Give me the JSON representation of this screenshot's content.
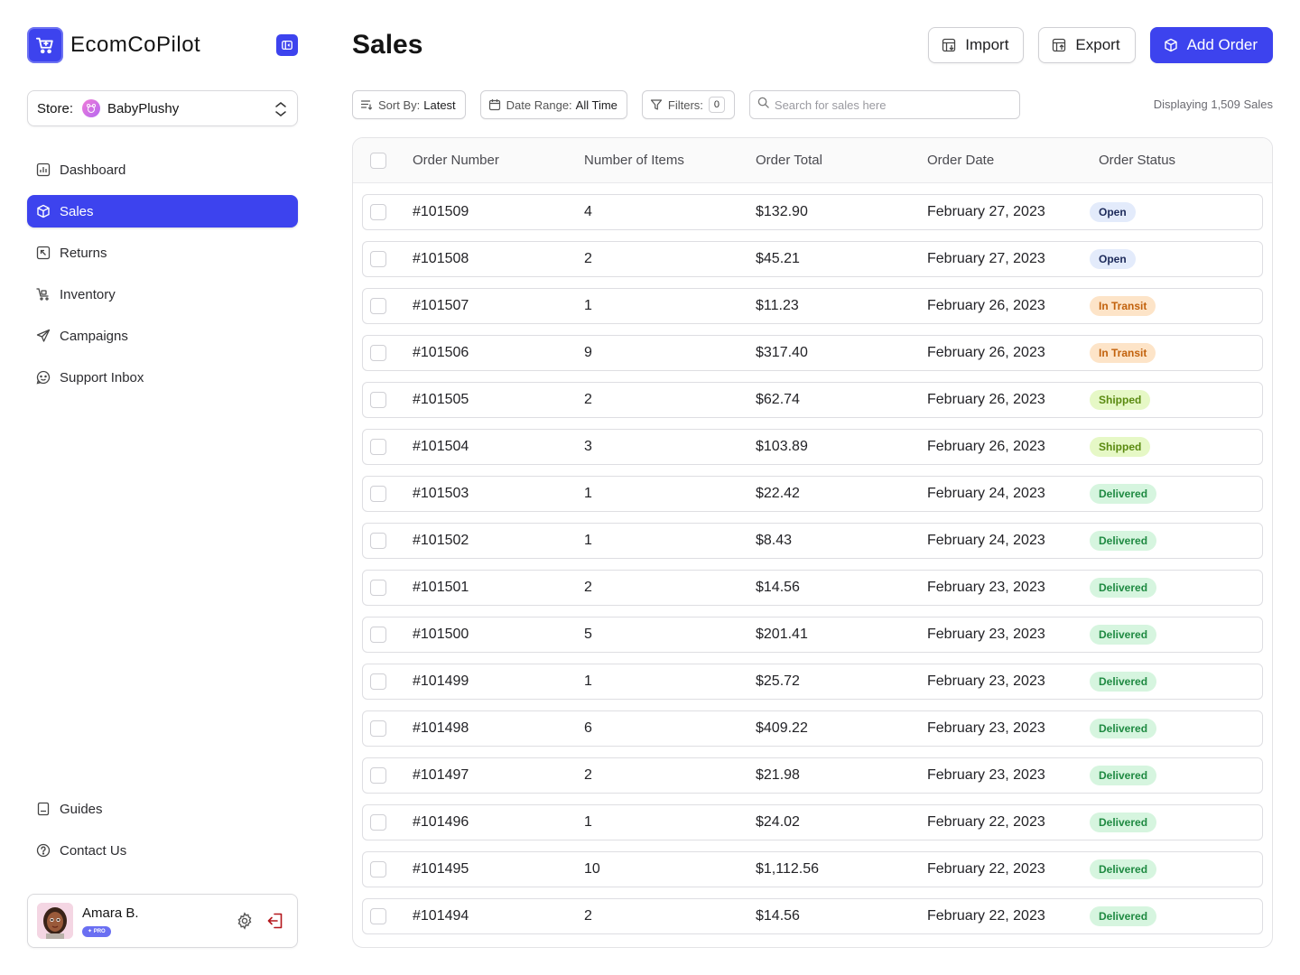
{
  "app": {
    "name": "EcomCoPilot",
    "brand_color": "#3d43ee"
  },
  "store": {
    "label": "Store:",
    "name": "BabyPlushy"
  },
  "nav": {
    "items": [
      {
        "label": "Dashboard",
        "icon": "chart-icon"
      },
      {
        "label": "Sales",
        "icon": "box-icon",
        "active": true
      },
      {
        "label": "Returns",
        "icon": "return-icon"
      },
      {
        "label": "Inventory",
        "icon": "cart-icon"
      },
      {
        "label": "Campaigns",
        "icon": "send-icon"
      },
      {
        "label": "Support Inbox",
        "icon": "chat-icon"
      }
    ],
    "bottom": [
      {
        "label": "Guides",
        "icon": "book-icon"
      },
      {
        "label": "Contact Us",
        "icon": "help-icon"
      }
    ]
  },
  "user": {
    "name": "Amara B.",
    "badge": "✦ PRO"
  },
  "page": {
    "title": "Sales",
    "import_label": "Import",
    "export_label": "Export",
    "add_label": "Add Order"
  },
  "toolbar": {
    "sort_label": "Sort By:",
    "sort_value": "Latest",
    "date_label": "Date Range:",
    "date_value": "All Time",
    "filters_label": "Filters:",
    "filters_count": "0",
    "search_placeholder": "Search for sales here",
    "display_count": "Displaying 1,509 Sales"
  },
  "table": {
    "headers": [
      "Order Number",
      "Number of Items",
      "Order Total",
      "Order Date",
      "Order Status"
    ],
    "status_styles": {
      "Open": {
        "bg": "#e3ebfb",
        "fg": "#1c2a5a"
      },
      "In Transit": {
        "bg": "#fde4c8",
        "fg": "#c2620d"
      },
      "Shipped": {
        "bg": "#e6f8c6",
        "fg": "#5a8a10"
      },
      "Delivered": {
        "bg": "#d6f5df",
        "fg": "#1f8a42"
      }
    },
    "rows": [
      {
        "order": "#101509",
        "items": "4",
        "total": "$132.90",
        "date": "February 27, 2023",
        "status": "Open"
      },
      {
        "order": "#101508",
        "items": "2",
        "total": "$45.21",
        "date": "February 27, 2023",
        "status": "Open"
      },
      {
        "order": "#101507",
        "items": "1",
        "total": "$11.23",
        "date": "February 26, 2023",
        "status": "In Transit"
      },
      {
        "order": "#101506",
        "items": "9",
        "total": "$317.40",
        "date": "February 26, 2023",
        "status": "In Transit"
      },
      {
        "order": "#101505",
        "items": "2",
        "total": "$62.74",
        "date": "February 26, 2023",
        "status": "Shipped"
      },
      {
        "order": "#101504",
        "items": "3",
        "total": "$103.89",
        "date": "February 26, 2023",
        "status": "Shipped"
      },
      {
        "order": "#101503",
        "items": "1",
        "total": "$22.42",
        "date": "February 24, 2023",
        "status": "Delivered"
      },
      {
        "order": "#101502",
        "items": "1",
        "total": "$8.43",
        "date": "February 24, 2023",
        "status": "Delivered"
      },
      {
        "order": "#101501",
        "items": "2",
        "total": "$14.56",
        "date": "February 23, 2023",
        "status": "Delivered"
      },
      {
        "order": "#101500",
        "items": "5",
        "total": "$201.41",
        "date": "February 23, 2023",
        "status": "Delivered"
      },
      {
        "order": "#101499",
        "items": "1",
        "total": "$25.72",
        "date": "February 23, 2023",
        "status": "Delivered"
      },
      {
        "order": "#101498",
        "items": "6",
        "total": "$409.22",
        "date": "February 23, 2023",
        "status": "Delivered"
      },
      {
        "order": "#101497",
        "items": "2",
        "total": "$21.98",
        "date": "February 23, 2023",
        "status": "Delivered"
      },
      {
        "order": "#101496",
        "items": "1",
        "total": "$24.02",
        "date": "February 22, 2023",
        "status": "Delivered"
      },
      {
        "order": "#101495",
        "items": "10",
        "total": "$1,112.56",
        "date": "February 22, 2023",
        "status": "Delivered"
      },
      {
        "order": "#101494",
        "items": "2",
        "total": "$14.56",
        "date": "February 22, 2023",
        "status": "Delivered"
      }
    ]
  }
}
